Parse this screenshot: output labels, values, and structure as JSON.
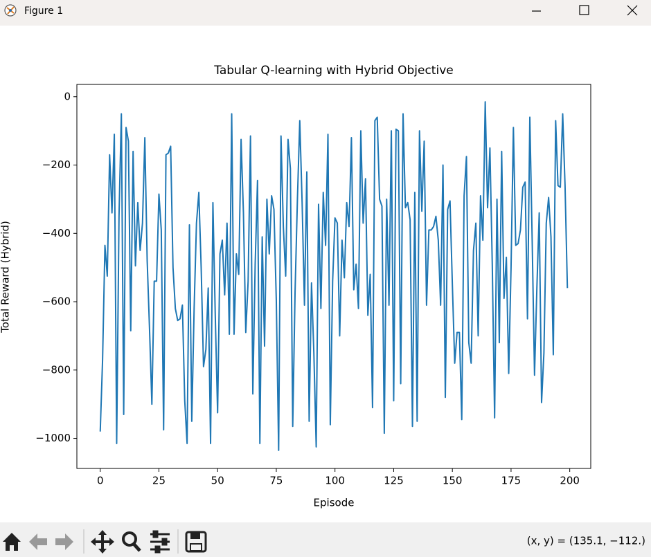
{
  "window": {
    "title": "Figure 1",
    "status": "(x, y) = (135.1, −112.)"
  },
  "chart_data": {
    "type": "line",
    "title": "Tabular Q-learning with Hybrid Objective",
    "x_label": "Episode",
    "y_label": "Total Reward (Hybrid)",
    "x": [
      0,
      1,
      2,
      3,
      4,
      5,
      6,
      7,
      8,
      9,
      10,
      11,
      12,
      13,
      14,
      15,
      16,
      17,
      18,
      19,
      20,
      21,
      22,
      23,
      24,
      25,
      26,
      27,
      28,
      29,
      30,
      31,
      32,
      33,
      34,
      35,
      36,
      37,
      38,
      39,
      40,
      41,
      42,
      43,
      44,
      45,
      46,
      47,
      48,
      49,
      50,
      51,
      52,
      53,
      54,
      55,
      56,
      57,
      58,
      59,
      60,
      61,
      62,
      63,
      64,
      65,
      66,
      67,
      68,
      69,
      70,
      71,
      72,
      73,
      74,
      75,
      76,
      77,
      78,
      79,
      80,
      81,
      82,
      83,
      84,
      85,
      86,
      87,
      88,
      89,
      90,
      91,
      92,
      93,
      94,
      95,
      96,
      97,
      98,
      99,
      100,
      101,
      102,
      103,
      104,
      105,
      106,
      107,
      108,
      109,
      110,
      111,
      112,
      113,
      114,
      115,
      116,
      117,
      118,
      119,
      120,
      121,
      122,
      123,
      124,
      125,
      126,
      127,
      128,
      129,
      130,
      131,
      132,
      133,
      134,
      135,
      136,
      137,
      138,
      139,
      140,
      141,
      142,
      143,
      144,
      145,
      146,
      147,
      148,
      149,
      150,
      151,
      152,
      153,
      154,
      155,
      156,
      157,
      158,
      159,
      160,
      161,
      162,
      163,
      164,
      165,
      166,
      167,
      168,
      169,
      170,
      171,
      172,
      173,
      174,
      175,
      176,
      177,
      178,
      179,
      180,
      181,
      182,
      183,
      184,
      185,
      186,
      187,
      188,
      189,
      190,
      191,
      192,
      193,
      194,
      195,
      196,
      197,
      198,
      199
    ],
    "series": [
      {
        "color": "#1f77b4",
        "values": [
          -980,
          -770,
          -435,
          -525,
          -170,
          -340,
          -110,
          -1015,
          -350,
          -50,
          -930,
          -90,
          -130,
          -685,
          -160,
          -495,
          -310,
          -450,
          -370,
          -120,
          -480,
          -680,
          -900,
          -540,
          -540,
          -285,
          -390,
          -975,
          -170,
          -165,
          -145,
          -500,
          -620,
          -655,
          -650,
          -610,
          -890,
          -1015,
          -375,
          -950,
          -620,
          -370,
          -280,
          -500,
          -790,
          -740,
          -560,
          -1015,
          -310,
          -640,
          -925,
          -460,
          -420,
          -580,
          -370,
          -695,
          -50,
          -695,
          -460,
          -520,
          -125,
          -340,
          -690,
          -540,
          -115,
          -870,
          -490,
          -245,
          -1015,
          -410,
          -730,
          -300,
          -460,
          -290,
          -330,
          -595,
          -1035,
          -115,
          -380,
          -525,
          -125,
          -210,
          -965,
          -570,
          -300,
          -70,
          -310,
          -610,
          -220,
          -950,
          -545,
          -750,
          -1025,
          -315,
          -620,
          -280,
          -435,
          -110,
          -960,
          -540,
          -355,
          -370,
          -700,
          -420,
          -530,
          -310,
          -380,
          -120,
          -565,
          -490,
          -620,
          -100,
          -370,
          -240,
          -640,
          -520,
          -910,
          -70,
          -60,
          -300,
          -320,
          -985,
          -300,
          -610,
          -100,
          -890,
          -95,
          -100,
          -840,
          -50,
          -325,
          -310,
          -360,
          -965,
          -280,
          -950,
          -100,
          -335,
          -130,
          -610,
          -390,
          -390,
          -380,
          -350,
          -420,
          -610,
          -200,
          -880,
          -330,
          -305,
          -550,
          -780,
          -690,
          -690,
          -945,
          -290,
          -175,
          -720,
          -780,
          -450,
          -370,
          -700,
          -290,
          -420,
          -15,
          -325,
          -150,
          -490,
          -940,
          -300,
          -720,
          -160,
          -590,
          -470,
          -810,
          -500,
          -90,
          -435,
          -430,
          -390,
          -265,
          -250,
          -650,
          -60,
          -420,
          -815,
          -560,
          -340,
          -895,
          -750,
          -370,
          -295,
          -410,
          -755,
          -70,
          -260,
          -265,
          -50,
          -260,
          -560
        ]
      }
    ],
    "xlim": [
      -9.95,
      208.95
    ],
    "ylim": [
      -1088,
      36
    ],
    "xticks": [
      0,
      25,
      50,
      75,
      100,
      125,
      150,
      175,
      200
    ],
    "yticks": [
      0,
      {
        "value": -200,
        "label": "−200"
      },
      {
        "value": -400,
        "label": "−400"
      },
      {
        "value": -600,
        "label": "−600"
      },
      {
        "value": -800,
        "label": "−800"
      },
      {
        "value": -1000,
        "label": "−1000"
      }
    ]
  }
}
